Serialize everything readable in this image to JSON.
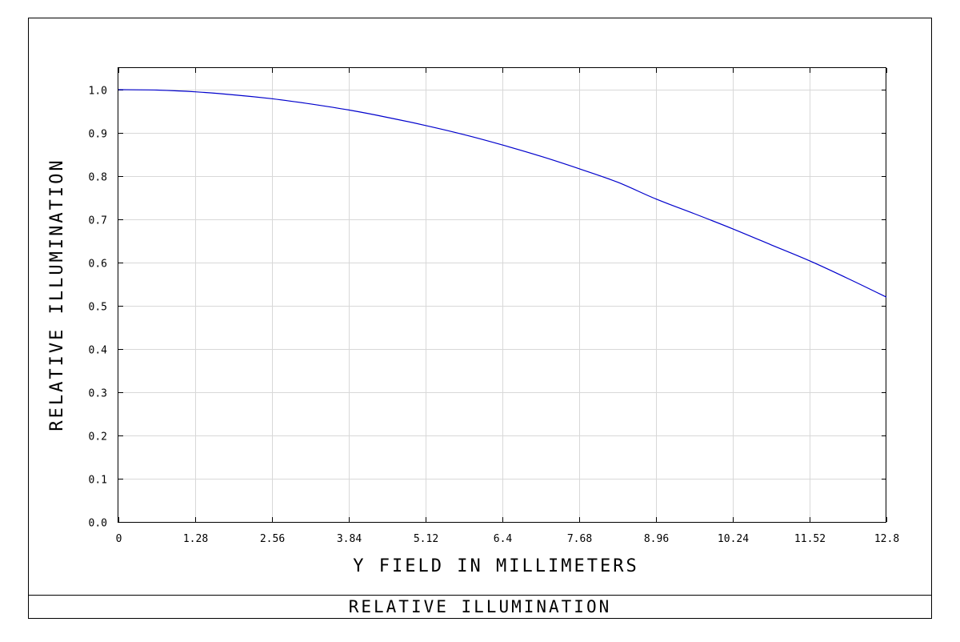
{
  "chart_data": {
    "type": "line",
    "title": "RELATIVE ILLUMINATION",
    "xlabel": "Y FIELD IN MILLIMETERS",
    "ylabel": "RELATIVE ILLUMINATION",
    "xlim": [
      0,
      12.8
    ],
    "ylim": [
      0.0,
      1.0
    ],
    "x_ticks": [
      "0",
      "1.28",
      "2.56",
      "3.84",
      "5.12",
      "6.4",
      "7.68",
      "8.96",
      "10.24",
      "11.52",
      "12.8"
    ],
    "y_ticks": [
      "0.0",
      "0.1",
      "0.2",
      "0.3",
      "0.4",
      "0.5",
      "0.6",
      "0.7",
      "0.8",
      "0.9",
      "1.0"
    ],
    "grid": true,
    "line_color": "#0000cc",
    "series": [
      {
        "x": [
          0,
          0.64,
          1.28,
          1.92,
          2.56,
          3.2,
          3.84,
          4.48,
          5.12,
          5.76,
          6.4,
          7.04,
          7.68,
          8.32,
          8.96,
          9.6,
          10.24,
          10.88,
          11.52,
          12.16,
          12.8
        ],
        "values": [
          1.0,
          0.999,
          0.995,
          0.988,
          0.979,
          0.967,
          0.953,
          0.936,
          0.917,
          0.896,
          0.872,
          0.846,
          0.817,
          0.786,
          0.747,
          0.713,
          0.678,
          0.641,
          0.604,
          0.563,
          0.52
        ]
      }
    ]
  }
}
